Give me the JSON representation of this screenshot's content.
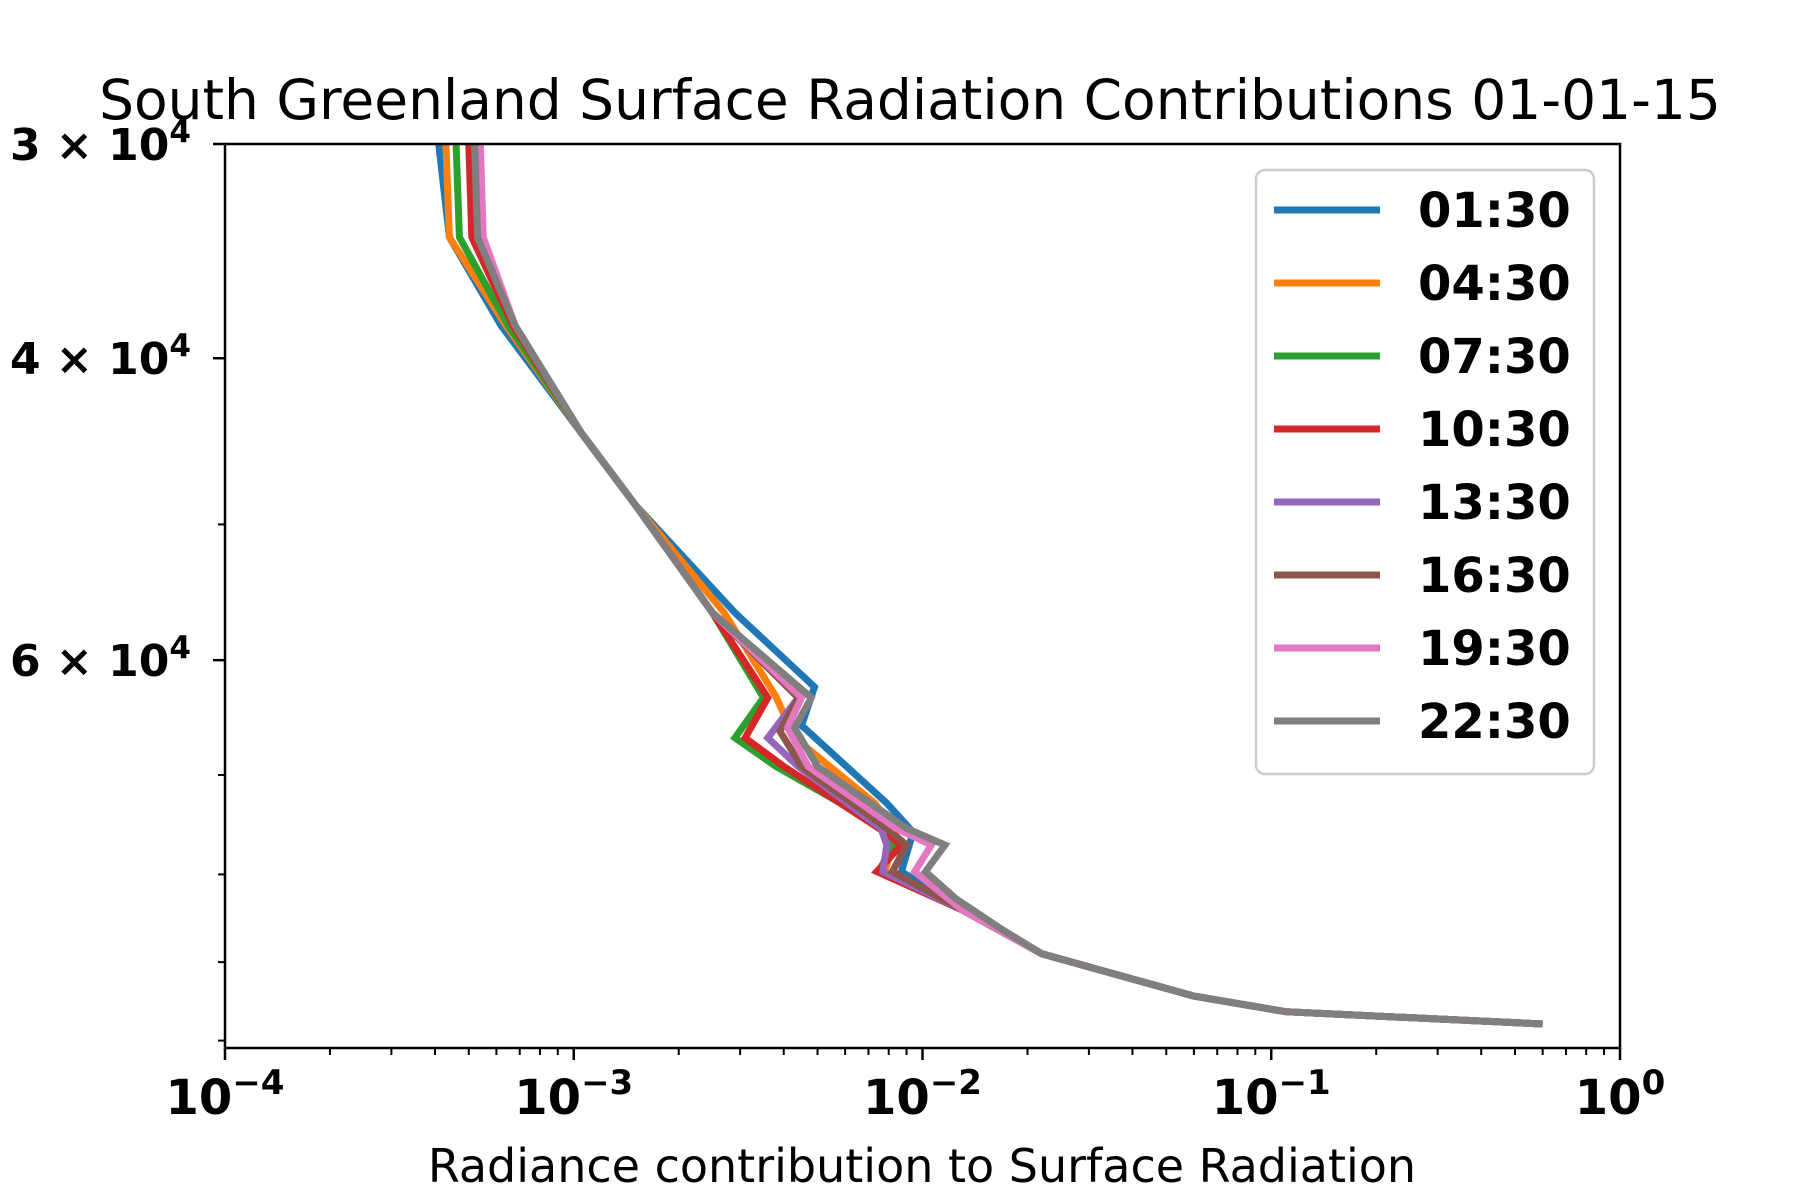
{
  "chart_data": {
    "type": "line",
    "title": "South Greenland Surface Radiation Contributions 01-01-15",
    "xlabel": "Radiance contribution to Surface Radiation",
    "ylabel": "",
    "xscale": "log",
    "yscale": "log",
    "y_inverted": true,
    "xlim": [
      0.0001,
      1
    ],
    "ylim": [
      30000,
      101000
    ],
    "x_ticks": [
      {
        "value": 0.0001,
        "base": "10",
        "exp": "−4"
      },
      {
        "value": 0.001,
        "base": "10",
        "exp": "−3"
      },
      {
        "value": 0.01,
        "base": "10",
        "exp": "−2"
      },
      {
        "value": 0.1,
        "base": "10",
        "exp": "−1"
      },
      {
        "value": 1,
        "base": "10",
        "exp": "0"
      }
    ],
    "y_ticks": [
      {
        "value": 30000,
        "mant": "3",
        "exp": "4"
      },
      {
        "value": 40000,
        "mant": "4",
        "exp": "4"
      },
      {
        "value": 60000,
        "mant": "6",
        "exp": "4"
      }
    ],
    "y_minor_ticks": [
      50000,
      70000,
      80000,
      90000,
      100000
    ],
    "legend_position": "upper-right",
    "grid": false,
    "series": [
      {
        "name": "01:30",
        "color": "#1f77b4",
        "points": [
          [
            0.00041,
            30000
          ],
          [
            0.00044,
            34000
          ],
          [
            0.00062,
            38300
          ],
          [
            0.00105,
            44200
          ],
          [
            0.0015,
            48700
          ],
          [
            0.0029,
            56300
          ],
          [
            0.0049,
            62200
          ],
          [
            0.0045,
            65500
          ],
          [
            0.0079,
            72700
          ],
          [
            0.0094,
            75600
          ],
          [
            0.0087,
            79700
          ],
          [
            0.013,
            83900
          ],
          [
            0.022,
            89000
          ],
          [
            0.06,
            94200
          ],
          [
            0.11,
            96200
          ],
          [
            0.6,
            97800
          ]
        ]
      },
      {
        "name": "04:30",
        "color": "#ff7f0e",
        "points": [
          [
            0.00043,
            30000
          ],
          [
            0.00044,
            34000
          ],
          [
            0.00064,
            38300
          ],
          [
            0.00105,
            44200
          ],
          [
            0.0015,
            48700
          ],
          [
            0.0027,
            56300
          ],
          [
            0.0038,
            63000
          ],
          [
            0.0043,
            66600
          ],
          [
            0.0073,
            72700
          ],
          [
            0.0084,
            75600
          ],
          [
            0.0078,
            79700
          ],
          [
            0.013,
            83900
          ],
          [
            0.022,
            89000
          ],
          [
            0.06,
            94200
          ],
          [
            0.11,
            96200
          ],
          [
            0.6,
            97800
          ]
        ]
      },
      {
        "name": "07:30",
        "color": "#2ca02c",
        "points": [
          [
            0.00046,
            30000
          ],
          [
            0.00047,
            34000
          ],
          [
            0.00065,
            38300
          ],
          [
            0.00105,
            44200
          ],
          [
            0.0015,
            48700
          ],
          [
            0.0025,
            56300
          ],
          [
            0.0035,
            63100
          ],
          [
            0.0029,
            66600
          ],
          [
            0.0038,
            69200
          ],
          [
            0.0078,
            75200
          ],
          [
            0.0082,
            76900
          ],
          [
            0.0075,
            79700
          ],
          [
            0.013,
            83900
          ],
          [
            0.022,
            89000
          ],
          [
            0.06,
            94200
          ],
          [
            0.11,
            96200
          ],
          [
            0.6,
            97800
          ]
        ]
      },
      {
        "name": "10:30",
        "color": "#d62728",
        "points": [
          [
            0.0005,
            30000
          ],
          [
            0.00051,
            34000
          ],
          [
            0.00067,
            38300
          ],
          [
            0.00105,
            44200
          ],
          [
            0.0015,
            48700
          ],
          [
            0.0025,
            56300
          ],
          [
            0.0036,
            63100
          ],
          [
            0.0031,
            66600
          ],
          [
            0.004,
            69200
          ],
          [
            0.0075,
            75200
          ],
          [
            0.0087,
            76900
          ],
          [
            0.0074,
            79700
          ],
          [
            0.013,
            83900
          ],
          [
            0.022,
            89000
          ],
          [
            0.06,
            94200
          ],
          [
            0.11,
            96200
          ],
          [
            0.6,
            97800
          ]
        ]
      },
      {
        "name": "13:30",
        "color": "#9467bd",
        "points": [
          [
            0.00052,
            30000
          ],
          [
            0.00053,
            34000
          ],
          [
            0.00068,
            38300
          ],
          [
            0.00105,
            44200
          ],
          [
            0.0015,
            48700
          ],
          [
            0.0025,
            56300
          ],
          [
            0.0044,
            63100
          ],
          [
            0.0036,
            66600
          ],
          [
            0.0044,
            69200
          ],
          [
            0.0076,
            75200
          ],
          [
            0.0079,
            76900
          ],
          [
            0.0077,
            79700
          ],
          [
            0.013,
            83900
          ],
          [
            0.022,
            89000
          ],
          [
            0.06,
            94200
          ],
          [
            0.11,
            96200
          ],
          [
            0.6,
            97800
          ]
        ]
      },
      {
        "name": "16:30",
        "color": "#8c564b",
        "points": [
          [
            0.00052,
            30000
          ],
          [
            0.00053,
            34000
          ],
          [
            0.00068,
            38300
          ],
          [
            0.00105,
            44200
          ],
          [
            0.0015,
            48700
          ],
          [
            0.0025,
            56300
          ],
          [
            0.0044,
            63100
          ],
          [
            0.0039,
            66000
          ],
          [
            0.0045,
            69200
          ],
          [
            0.0079,
            75200
          ],
          [
            0.009,
            76900
          ],
          [
            0.0082,
            79700
          ],
          [
            0.013,
            83900
          ],
          [
            0.022,
            89000
          ],
          [
            0.06,
            94200
          ],
          [
            0.11,
            96200
          ],
          [
            0.6,
            97800
          ]
        ]
      },
      {
        "name": "19:30",
        "color": "#e377c2",
        "points": [
          [
            0.00054,
            30000
          ],
          [
            0.00055,
            34000
          ],
          [
            0.00068,
            38300
          ],
          [
            0.00105,
            44200
          ],
          [
            0.0015,
            48700
          ],
          [
            0.0025,
            56300
          ],
          [
            0.0045,
            63100
          ],
          [
            0.0041,
            65700
          ],
          [
            0.0047,
            69200
          ],
          [
            0.0084,
            75200
          ],
          [
            0.0106,
            76900
          ],
          [
            0.0095,
            79700
          ],
          [
            0.013,
            83900
          ],
          [
            0.022,
            89000
          ],
          [
            0.06,
            94200
          ],
          [
            0.11,
            96200
          ],
          [
            0.6,
            97800
          ]
        ]
      },
      {
        "name": "22:30",
        "color": "#7f7f7f",
        "points": [
          [
            0.00052,
            30000
          ],
          [
            0.00053,
            34000
          ],
          [
            0.00068,
            38300
          ],
          [
            0.00105,
            44200
          ],
          [
            0.0015,
            48700
          ],
          [
            0.0025,
            56300
          ],
          [
            0.0048,
            63100
          ],
          [
            0.0043,
            65700
          ],
          [
            0.005,
            69200
          ],
          [
            0.009,
            75200
          ],
          [
            0.0116,
            76900
          ],
          [
            0.0102,
            79700
          ],
          [
            0.0125,
            82700
          ],
          [
            0.017,
            86200
          ],
          [
            0.022,
            89000
          ],
          [
            0.06,
            94200
          ],
          [
            0.11,
            96200
          ],
          [
            0.6,
            97800
          ]
        ]
      }
    ]
  }
}
